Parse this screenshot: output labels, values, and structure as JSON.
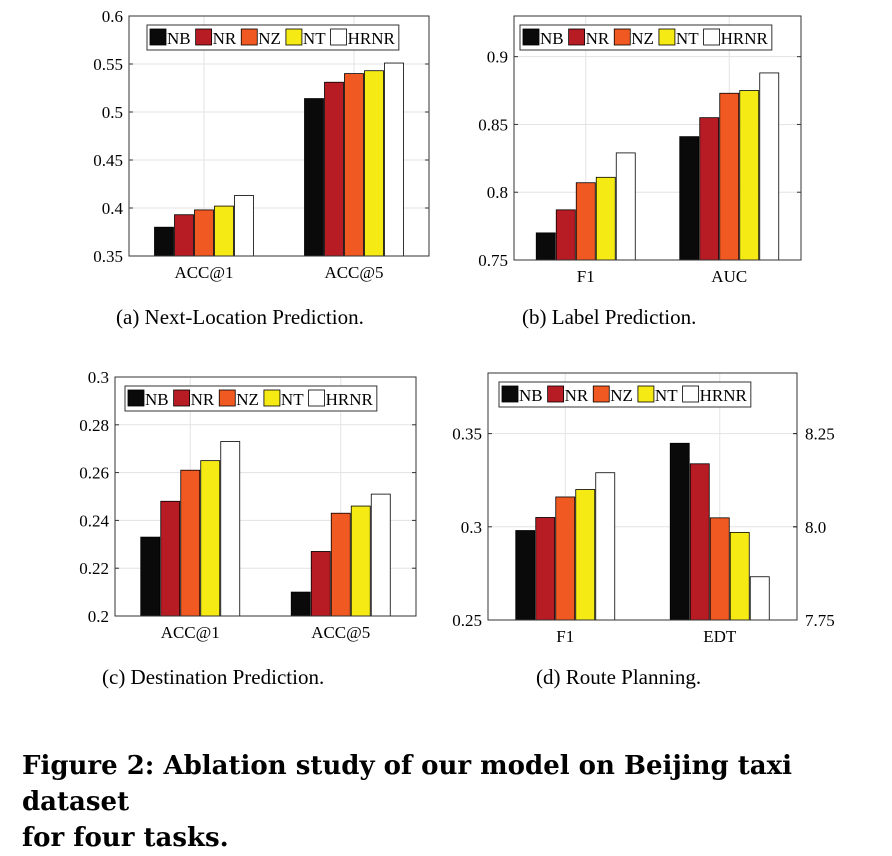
{
  "figure_caption": {
    "line1": "Figure 2: Ablation study of our model on Beijing taxi dataset",
    "line2": "for four tasks."
  },
  "legend_labels": [
    "NB",
    "NR",
    "NZ",
    "NT",
    "HRNR"
  ],
  "colors": {
    "NB": "#0a0a0a",
    "NR": "#b71c24",
    "NZ": "#f05a22",
    "NT": "#f5ea14",
    "HRNR": "#ffffff"
  },
  "chart_data": [
    {
      "type": "bar",
      "caption": "(a)  Next-Location Prediction.",
      "categories": [
        "ACC@1",
        "ACC@5"
      ],
      "series": [
        {
          "name": "NB",
          "values": [
            0.38,
            0.514
          ]
        },
        {
          "name": "NR",
          "values": [
            0.393,
            0.531
          ]
        },
        {
          "name": "NZ",
          "values": [
            0.398,
            0.54
          ]
        },
        {
          "name": "NT",
          "values": [
            0.402,
            0.543
          ]
        },
        {
          "name": "HRNR",
          "values": [
            0.413,
            0.551
          ]
        }
      ],
      "ylim": [
        0.35,
        0.6
      ],
      "yticks": [
        "0.35",
        "0.4",
        "0.45",
        "0.5",
        "0.55",
        "0.6"
      ],
      "ytick_values": [
        0.35,
        0.4,
        0.45,
        0.5,
        0.55,
        0.6
      ],
      "grid": true,
      "legend": "top"
    },
    {
      "type": "bar",
      "caption": "(b)  Label Prediction.",
      "categories": [
        "F1",
        "AUC"
      ],
      "series": [
        {
          "name": "NB",
          "values": [
            0.77,
            0.841
          ]
        },
        {
          "name": "NR",
          "values": [
            0.787,
            0.855
          ]
        },
        {
          "name": "NZ",
          "values": [
            0.807,
            0.873
          ]
        },
        {
          "name": "NT",
          "values": [
            0.811,
            0.875
          ]
        },
        {
          "name": "HRNR",
          "values": [
            0.829,
            0.888
          ]
        }
      ],
      "ylim": [
        0.75,
        0.93
      ],
      "yticks": [
        "0.75",
        "0.8",
        "0.85",
        "0.9"
      ],
      "ytick_values": [
        0.75,
        0.8,
        0.85,
        0.9
      ],
      "grid": true,
      "legend": "top"
    },
    {
      "type": "bar",
      "caption": "(c)  Destination Prediction.",
      "categories": [
        "ACC@1",
        "ACC@5"
      ],
      "series": [
        {
          "name": "NB",
          "values": [
            0.233,
            0.21
          ]
        },
        {
          "name": "NR",
          "values": [
            0.248,
            0.227
          ]
        },
        {
          "name": "NZ",
          "values": [
            0.261,
            0.243
          ]
        },
        {
          "name": "NT",
          "values": [
            0.265,
            0.246
          ]
        },
        {
          "name": "HRNR",
          "values": [
            0.273,
            0.251
          ]
        }
      ],
      "ylim": [
        0.2,
        0.3
      ],
      "yticks": [
        "0.2",
        "0.22",
        "0.24",
        "0.26",
        "0.28",
        "0.3"
      ],
      "ytick_values": [
        0.2,
        0.22,
        0.24,
        0.26,
        0.28,
        0.3
      ],
      "grid": true,
      "legend": "top"
    },
    {
      "type": "bar",
      "caption": "(d)  Route Planning.",
      "categories": [
        "F1",
        "EDT"
      ],
      "series": [
        {
          "name": "NB",
          "values": [
            0.298,
            8.224
          ]
        },
        {
          "name": "NR",
          "values": [
            0.305,
            8.169
          ]
        },
        {
          "name": "NZ",
          "values": [
            0.316,
            8.024
          ]
        },
        {
          "name": "NT",
          "values": [
            0.32,
            7.985
          ]
        },
        {
          "name": "HRNR",
          "values": [
            0.329,
            7.866
          ]
        }
      ],
      "ylim": [
        0.25,
        0.3825
      ],
      "yticks": [
        "0.25",
        "0.3",
        "0.35"
      ],
      "ytick_values": [
        0.25,
        0.3,
        0.35
      ],
      "ylim_right": [
        7.75,
        8.4125
      ],
      "yticks_right": [
        "7.75",
        "8.0",
        "8.25"
      ],
      "ytick_values_right": [
        7.75,
        8.0,
        8.25
      ],
      "right_axis_category": "EDT",
      "grid": true,
      "legend": "top"
    }
  ]
}
